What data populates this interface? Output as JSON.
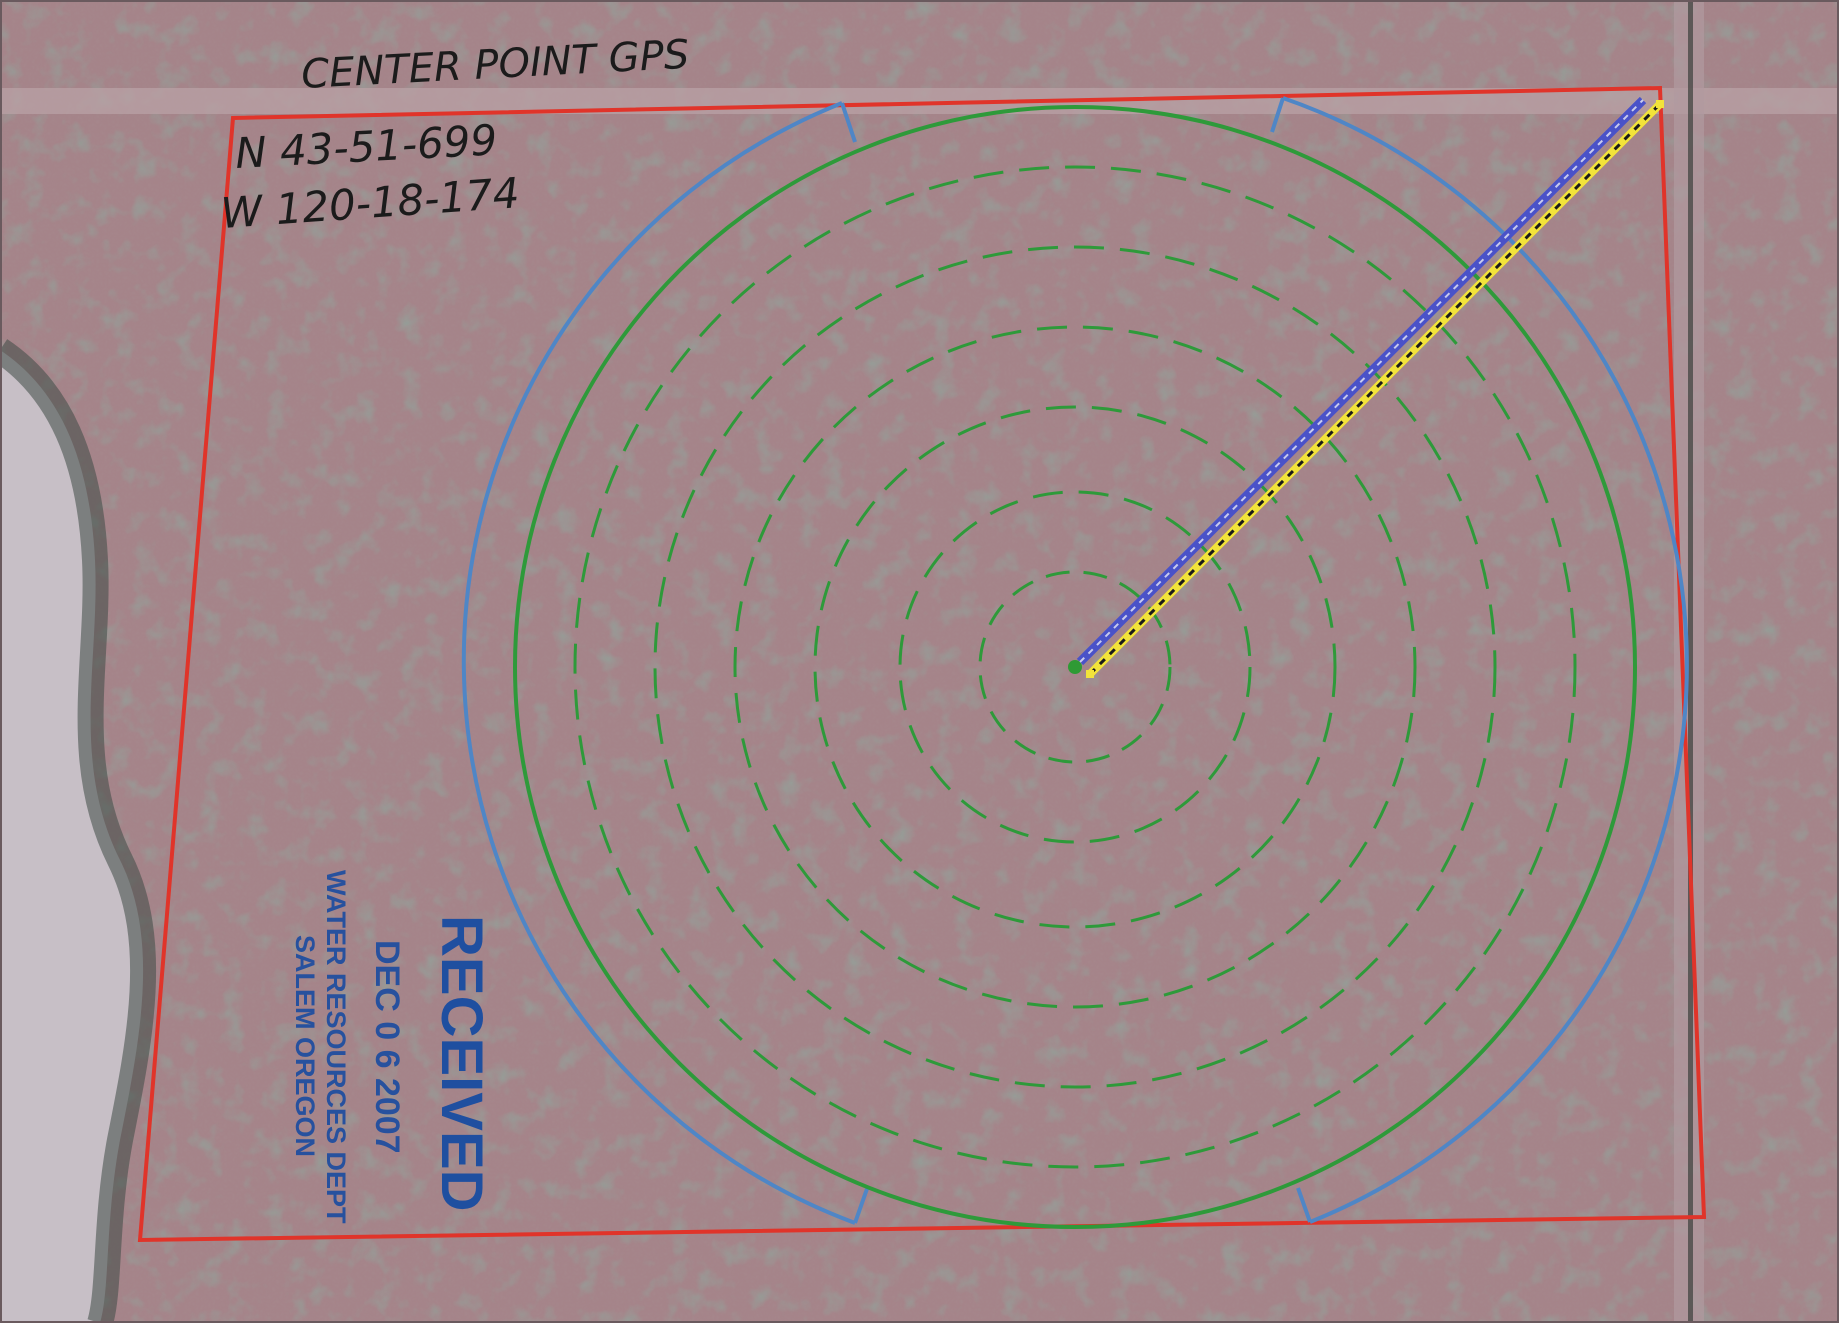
{
  "annotation": {
    "heading": "CENTER POINT GPS",
    "latitude": "N 43-51-699",
    "longitude": "W 120-18-174"
  },
  "stamp": {
    "status": "RECEIVED",
    "date": "DEC 0 6 2007",
    "agency": "WATER RESOURCES DEPT",
    "location": "SALEM OREGON"
  },
  "colors": {
    "background": "#9a7a80",
    "field": "#a58489",
    "vegetation": "#4a5a52",
    "river": "#c9c2c8",
    "property_boundary": "#e0342a",
    "irrigated_circle": "#2e9a3a",
    "coverage_arcs": "#4f86c6",
    "pivot_blue_line": "#4a52c8",
    "pivot_yellow_line": "#f2e33a",
    "stamp_ink": "#1f4fa0"
  },
  "features": {
    "boundary": "property-boundary",
    "circle": "irrigation-circle",
    "arcs": "end-gun-arcs",
    "pivot": "pivot-arm",
    "center": "center-point-marker"
  }
}
